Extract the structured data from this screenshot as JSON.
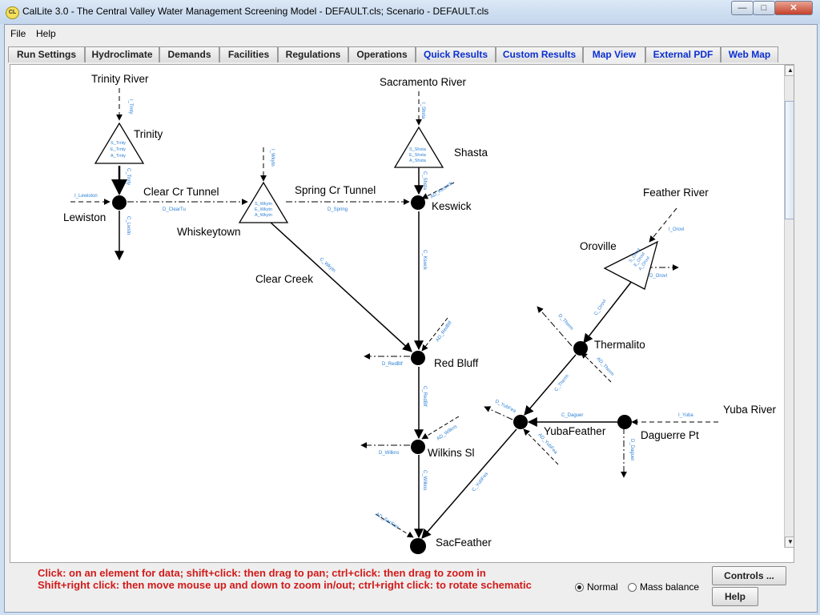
{
  "window": {
    "app_icon": "CL",
    "title": "CalLite 3.0 - The Central Valley Water Management Screening Model - DEFAULT.cls;  Scenario - DEFAULT.cls",
    "buttons": {
      "minimize": "—",
      "maximize": "□",
      "close": "✕"
    }
  },
  "menu": {
    "file": "File",
    "help": "Help"
  },
  "tabs": [
    {
      "label": "Run Settings"
    },
    {
      "label": "Hydroclimate"
    },
    {
      "label": "Demands"
    },
    {
      "label": "Facilities"
    },
    {
      "label": "Regulations"
    },
    {
      "label": "Operations"
    },
    {
      "label": "Quick Results"
    },
    {
      "label": "Custom Results"
    },
    {
      "label": "Map View"
    },
    {
      "label": "External PDF"
    },
    {
      "label": "Web Map"
    }
  ],
  "active_tab": "Map View",
  "map": {
    "places": {
      "trinity_river": "Trinity River",
      "trinity": "Trinity",
      "lewiston": "Lewiston",
      "clear_cr_tunnel": "Clear Cr Tunnel",
      "whiskeytown": "Whiskeytown",
      "spring_cr_tunnel": "Spring Cr Tunnel",
      "sacramento_river": "Sacramento River",
      "shasta": "Shasta",
      "keswick": "Keswick",
      "clear_creek": "Clear Creek",
      "red_bluff": "Red Bluff",
      "wilkins_sl": "Wilkins Sl",
      "sacfeather": "SacFeather",
      "feather_river": "Feather River",
      "oroville": "Oroville",
      "thermalito": "Thermalito",
      "yubafeather": "YubaFeather",
      "daguerre_pt": "Daguerre Pt",
      "yuba_river": "Yuba River"
    },
    "flow_labels": {
      "i_trnty": "I_Trnty",
      "c_trnty": "C_Trnty",
      "i_lewiston": "I_Lewiston",
      "c_lwstn": "C_Lwstn",
      "d_cleartu": "D_ClearTu",
      "i_wkytn": "I_Wkytn",
      "d_spring": "D_Spring",
      "i_shsta": "I_Shsta",
      "c_shsta": "C_Shsta",
      "ad_keswck": "AD_Keswck",
      "c_kswck": "C_Kswck",
      "c_wkytn": "C_Wkytn",
      "ad_redblf": "AD_RedBlf",
      "d_redblf": "D_RedBlf",
      "c_redblf": "C_RedBlf",
      "ad_wilkns": "AD_Wilkns",
      "d_wilkns": "D_Wilkns",
      "c_wilkns": "C_Wilkns",
      "ad_sacfea": "AD_SacFea",
      "i_orovl": "I_Orovl",
      "d_orovl": "D_Orovl",
      "c_orovl": "C_Orovl",
      "d_therm": "D_Therm",
      "ad_therm": "AD_Therm",
      "c_therm": "C_Therm",
      "d_yubfea": "D_YubFea",
      "ad_yubfea": "AD_YubFea",
      "c_yubfea": "C_YubFea",
      "c_daguer": "C_Daguer",
      "i_yuba": "I_Yuba",
      "d_daguer": "D_Daguer"
    },
    "storage_labels": {
      "trinity": [
        "S_Trnty",
        "E_Trnty",
        "A_Trnty"
      ],
      "whiskeytown": [
        "S_Wkytn",
        "E_Wkytn",
        "A_Wkytn"
      ],
      "shasta": [
        "S_Shsta",
        "E_Shsta",
        "A_Shsta"
      ],
      "oroville": [
        "S_Orovl",
        "E_Orovl",
        "A_Orovl"
      ]
    }
  },
  "instructions": {
    "line1": "Click: on an element for data; shift+click: then drag to pan; ctrl+click: then drag to zoom in",
    "line2": "Shift+right click: then move mouse up and down to zoom in/out;  ctrl+right click: to rotate schematic"
  },
  "view_mode": {
    "normal": "Normal",
    "mass_balance": "Mass balance",
    "selected": "Normal"
  },
  "buttons": {
    "controls": "Controls ...",
    "help": "Help"
  },
  "colors": {
    "hint_text": "#d21a1a",
    "tab_blue": "#0b2fd1",
    "flow_label": "#2c7fd6"
  }
}
